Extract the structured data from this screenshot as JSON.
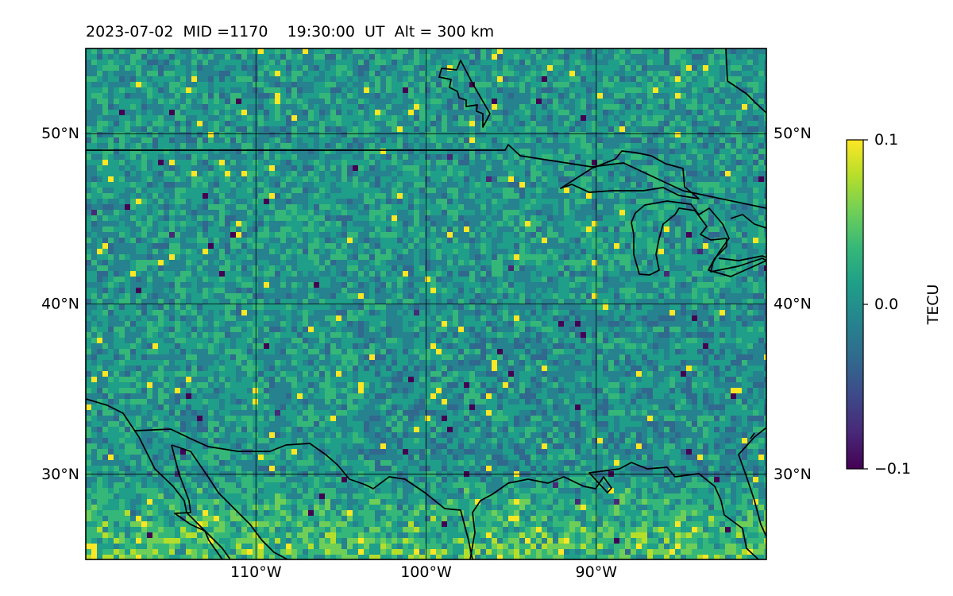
{
  "title": "2023-07-02  MID =1170    19:30:00  UT  Alt = 300 km",
  "map": {
    "lon_range": [
      -120,
      -80
    ],
    "lat_range": [
      25,
      55
    ],
    "lat_ticks": [
      {
        "value": 50,
        "label": "50°N"
      },
      {
        "value": 40,
        "label": "40°N"
      },
      {
        "value": 30,
        "label": "30°N"
      }
    ],
    "lon_ticks": [
      {
        "value": -110,
        "label": "110°W"
      },
      {
        "value": -100,
        "label": "100°W"
      },
      {
        "value": -90,
        "label": "90°W"
      }
    ],
    "gridlines": true,
    "coastlines": true,
    "colormap": "viridis"
  },
  "colorbar": {
    "label": "TECU",
    "min": -0.1,
    "max": 0.1,
    "ticks": [
      {
        "value": 0.1,
        "label": "0.1"
      },
      {
        "value": 0.0,
        "label": "0.0"
      },
      {
        "value": -0.1,
        "label": "−0.1"
      }
    ]
  },
  "colors": {
    "viridis": [
      "#440154",
      "#482878",
      "#3e4989",
      "#31688e",
      "#26828e",
      "#1f9e89",
      "#35b779",
      "#6ece58",
      "#b5de2b",
      "#fde725"
    ]
  }
}
